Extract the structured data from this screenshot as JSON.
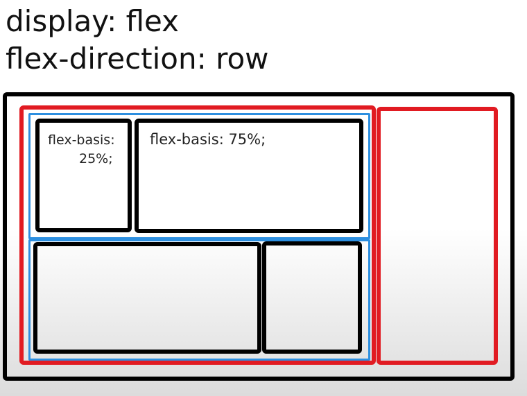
{
  "title": {
    "line1": "display: flex",
    "line2": "flex-direction: row"
  },
  "items": {
    "small_top_line1": "flex-basis:",
    "small_top_line2": "25%;",
    "wide_top": "flex-basis: 75%;"
  },
  "colors": {
    "outer_container": "#000000",
    "flex_item_border": "#e11b22",
    "nested_container_border": "#2d8fe0",
    "child_item_border": "#000000"
  }
}
